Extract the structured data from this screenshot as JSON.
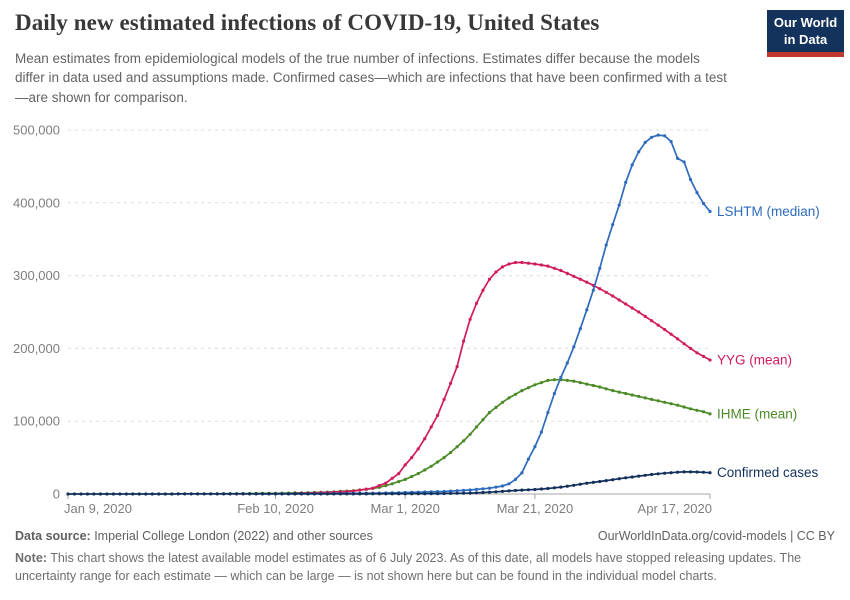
{
  "header": {
    "title": "Daily new estimated infections of COVID-19, United States",
    "subtitle": "Mean estimates from epidemiological models of the true number of infections. Estimates differ because the models differ in data used and assumptions made. Confirmed cases—which are infections that have been confirmed with a test—are shown for comparison.",
    "logo": {
      "line1": "Our World",
      "line2": "in Data",
      "bg_color": "#14335c",
      "accent_color": "#c0392f"
    }
  },
  "footer": {
    "source_label": "Data source:",
    "source_text": " Imperial College London (2022) and other sources",
    "attribution": "OurWorldInData.org/covid-models | CC BY",
    "note_label": "Note:",
    "note_text": " This chart shows the latest available model estimates as of 6 July 2023. As of this date, all models have stopped releasing updates. The uncertainty range for each estimate — which can be large — is not shown here but can be found in the individual model charts."
  },
  "chart_data": {
    "type": "line",
    "title": "Daily new estimated infections of COVID-19, United States",
    "x_unit": "days since Jan 9, 2020",
    "x_axis": {
      "range": [
        "Jan 9, 2020",
        "Apr 17, 2020"
      ],
      "total_days": 99,
      "ticks": [
        {
          "label": "Jan 9, 2020",
          "day": 0
        },
        {
          "label": "Feb 10, 2020",
          "day": 32
        },
        {
          "label": "Mar 1, 2020",
          "day": 52
        },
        {
          "label": "Mar 21, 2020",
          "day": 72
        },
        {
          "label": "Apr 17, 2020",
          "day": 99
        }
      ]
    },
    "y_axis": {
      "ylim": [
        0,
        500000
      ],
      "ticks": [
        {
          "label": "0",
          "value": 0
        },
        {
          "label": "100,000",
          "value": 100000
        },
        {
          "label": "200,000",
          "value": 200000
        },
        {
          "label": "300,000",
          "value": 300000
        },
        {
          "label": "400,000",
          "value": 400000
        },
        {
          "label": "500,000",
          "value": 500000
        }
      ]
    },
    "grid": "horizontal dashed",
    "legend_position": "labels at right end of each line",
    "colors": {
      "grid": "#dcdcdc",
      "axis": "#a5a5a5",
      "tick_text": "#7e7e7e"
    },
    "series": [
      {
        "id": "ihme",
        "name": "IHME (mean)",
        "color": "#4c8a28",
        "points": [
          [
            23,
            300
          ],
          [
            28,
            600
          ],
          [
            32,
            1000
          ],
          [
            36,
            1600
          ],
          [
            40,
            2600
          ],
          [
            44,
            4500
          ],
          [
            46,
            6500
          ],
          [
            48,
            9000
          ],
          [
            50,
            14000
          ],
          [
            52,
            20000
          ],
          [
            54,
            28000
          ],
          [
            56,
            38000
          ],
          [
            57,
            44000
          ],
          [
            58,
            50000
          ],
          [
            59,
            57000
          ],
          [
            60,
            65000
          ],
          [
            61,
            73000
          ],
          [
            62,
            82000
          ],
          [
            63,
            92000
          ],
          [
            64,
            102000
          ],
          [
            65,
            112000
          ],
          [
            66,
            119000
          ],
          [
            67,
            126000
          ],
          [
            68,
            132000
          ],
          [
            69,
            137000
          ],
          [
            70,
            142000
          ],
          [
            71,
            146000
          ],
          [
            72,
            150000
          ],
          [
            73,
            153000
          ],
          [
            74,
            156000
          ],
          [
            75,
            157000
          ],
          [
            76,
            157000
          ],
          [
            77,
            156000
          ],
          [
            78,
            155000
          ],
          [
            79,
            153000
          ],
          [
            80,
            151000
          ],
          [
            82,
            147000
          ],
          [
            84,
            142000
          ],
          [
            86,
            138000
          ],
          [
            88,
            134000
          ],
          [
            90,
            130000
          ],
          [
            92,
            126000
          ],
          [
            94,
            122000
          ],
          [
            96,
            117000
          ],
          [
            97,
            115000
          ],
          [
            98,
            113000
          ],
          [
            99,
            110000
          ]
        ]
      },
      {
        "id": "yyg",
        "name": "YYG (mean)",
        "color": "#d01c5c",
        "points": [
          [
            35,
            800
          ],
          [
            40,
            2000
          ],
          [
            44,
            4000
          ],
          [
            47,
            8000
          ],
          [
            49,
            15000
          ],
          [
            51,
            28000
          ],
          [
            52,
            40000
          ],
          [
            53,
            50000
          ],
          [
            54,
            62000
          ],
          [
            55,
            76000
          ],
          [
            56,
            92000
          ],
          [
            57,
            108000
          ],
          [
            58,
            130000
          ],
          [
            59,
            152000
          ],
          [
            60,
            175000
          ],
          [
            61,
            210000
          ],
          [
            62,
            240000
          ],
          [
            63,
            262000
          ],
          [
            64,
            280000
          ],
          [
            65,
            295000
          ],
          [
            66,
            305000
          ],
          [
            67,
            312000
          ],
          [
            68,
            316000
          ],
          [
            69,
            318000
          ],
          [
            70,
            318000
          ],
          [
            71,
            317000
          ],
          [
            72,
            316000
          ],
          [
            74,
            313000
          ],
          [
            76,
            307000
          ],
          [
            78,
            299000
          ],
          [
            80,
            291000
          ],
          [
            82,
            282000
          ],
          [
            84,
            272000
          ],
          [
            86,
            261000
          ],
          [
            88,
            250000
          ],
          [
            90,
            238000
          ],
          [
            92,
            226000
          ],
          [
            94,
            213000
          ],
          [
            96,
            200000
          ],
          [
            97,
            194000
          ],
          [
            98,
            189000
          ],
          [
            99,
            184000
          ]
        ]
      },
      {
        "id": "lshtm",
        "name": "LSHTM (median)",
        "color": "#2e6bbd",
        "points": [
          [
            30,
            300
          ],
          [
            40,
            600
          ],
          [
            48,
            1200
          ],
          [
            54,
            2500
          ],
          [
            58,
            3500
          ],
          [
            62,
            5500
          ],
          [
            65,
            8000
          ],
          [
            67,
            11000
          ],
          [
            68,
            14000
          ],
          [
            69,
            20000
          ],
          [
            70,
            29000
          ],
          [
            71,
            48000
          ],
          [
            72,
            65000
          ],
          [
            73,
            85000
          ],
          [
            74,
            112000
          ],
          [
            75,
            138000
          ],
          [
            76,
            160000
          ],
          [
            77,
            180000
          ],
          [
            78,
            202000
          ],
          [
            79,
            227000
          ],
          [
            80,
            253000
          ],
          [
            81,
            280000
          ],
          [
            82,
            310000
          ],
          [
            83,
            342000
          ],
          [
            84,
            370000
          ],
          [
            85,
            397000
          ],
          [
            86,
            428000
          ],
          [
            87,
            452000
          ],
          [
            88,
            470000
          ],
          [
            89,
            483000
          ],
          [
            90,
            490000
          ],
          [
            91,
            493000
          ],
          [
            92,
            492000
          ],
          [
            93,
            484000
          ],
          [
            94,
            461000
          ],
          [
            95,
            456000
          ],
          [
            96,
            432000
          ],
          [
            97,
            414000
          ],
          [
            98,
            399000
          ],
          [
            99,
            388000
          ]
        ]
      },
      {
        "id": "confirmed",
        "name": "Confirmed cases",
        "color": "#12305b",
        "points": [
          [
            0,
            0
          ],
          [
            10,
            0
          ],
          [
            20,
            100
          ],
          [
            30,
            100
          ],
          [
            40,
            100
          ],
          [
            46,
            200
          ],
          [
            52,
            300
          ],
          [
            56,
            500
          ],
          [
            60,
            900
          ],
          [
            62,
            1300
          ],
          [
            64,
            2000
          ],
          [
            66,
            3000
          ],
          [
            68,
            4200
          ],
          [
            70,
            5300
          ],
          [
            72,
            6200
          ],
          [
            74,
            7500
          ],
          [
            76,
            9500
          ],
          [
            78,
            12000
          ],
          [
            80,
            14800
          ],
          [
            82,
            17200
          ],
          [
            84,
            19700
          ],
          [
            86,
            22200
          ],
          [
            88,
            24600
          ],
          [
            90,
            26800
          ],
          [
            92,
            28600
          ],
          [
            94,
            29900
          ],
          [
            95,
            30300
          ],
          [
            96,
            30400
          ],
          [
            97,
            30200
          ],
          [
            98,
            29800
          ],
          [
            99,
            29300
          ]
        ]
      }
    ]
  }
}
